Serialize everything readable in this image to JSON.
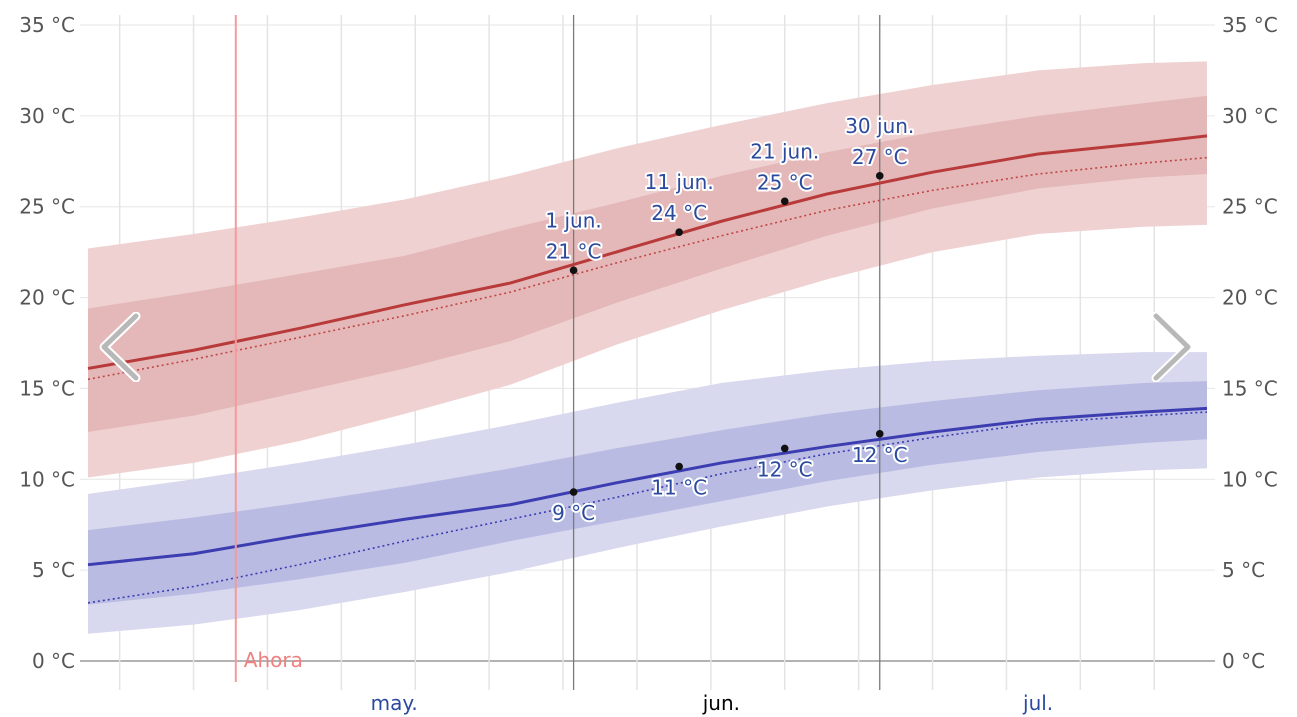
{
  "chart_data": {
    "type": "area",
    "title": "",
    "xlabel": "",
    "ylabel": "",
    "y_unit": "°C",
    "ylim": [
      0,
      35
    ],
    "y_ticks": [
      0,
      5,
      10,
      15,
      20,
      25,
      30,
      35
    ],
    "y_tick_labels": [
      "0 °C",
      "5 °C",
      "10 °C",
      "15 °C",
      "20 °C",
      "25 °C",
      "30 °C",
      "35 °C"
    ],
    "x_range": [
      "2024-04-16",
      "2024-07-31"
    ],
    "months": [
      {
        "label": "may.",
        "date": "2024-05-15",
        "color": "#2b4a9e"
      },
      {
        "label": "jun.",
        "date": "2024-06-15",
        "color": "#000000"
      },
      {
        "label": "jul.",
        "date": "2024-07-15",
        "color": "#2b4a9e"
      }
    ],
    "grid": true,
    "now": {
      "date": "2024-04-30",
      "label": "Ahora"
    },
    "x": [
      "2024-04-16",
      "2024-04-26",
      "2024-05-06",
      "2024-05-16",
      "2024-05-26",
      "2024-06-05",
      "2024-06-15",
      "2024-06-25",
      "2024-07-05",
      "2024-07-15",
      "2024-07-25",
      "2024-07-31"
    ],
    "series": [
      {
        "key": "max_outer",
        "color": "#efd1d1",
        "low": [
          10.1,
          10.9,
          12.1,
          13.6,
          15.2,
          17.4,
          19.3,
          21.0,
          22.5,
          23.5,
          23.9,
          24.0
        ],
        "high": [
          22.7,
          23.5,
          24.4,
          25.4,
          26.7,
          28.2,
          29.5,
          30.7,
          31.7,
          32.5,
          32.9,
          33.0
        ]
      },
      {
        "key": "max_inner",
        "color": "#e4b8b8",
        "low": [
          12.6,
          13.5,
          14.8,
          16.1,
          17.6,
          19.7,
          21.6,
          23.4,
          24.9,
          26.0,
          26.6,
          26.8
        ],
        "high": [
          19.4,
          20.3,
          21.3,
          22.3,
          23.8,
          25.2,
          26.7,
          28.0,
          29.1,
          30.0,
          30.7,
          31.1
        ]
      },
      {
        "key": "min_outer",
        "color": "#d8d8ee",
        "low": [
          1.5,
          2.0,
          2.8,
          3.8,
          4.9,
          6.2,
          7.4,
          8.5,
          9.4,
          10.1,
          10.5,
          10.6
        ],
        "high": [
          9.2,
          10.0,
          10.9,
          11.9,
          13.0,
          14.2,
          15.3,
          16.0,
          16.5,
          16.8,
          17.0,
          17.0
        ]
      },
      {
        "key": "min_inner",
        "color": "#babbe3",
        "low": [
          3.1,
          3.7,
          4.5,
          5.4,
          6.6,
          7.7,
          8.8,
          9.9,
          10.8,
          11.5,
          12.0,
          12.2
        ],
        "high": [
          7.2,
          7.9,
          8.7,
          9.6,
          10.6,
          11.7,
          12.7,
          13.6,
          14.3,
          14.9,
          15.3,
          15.4
        ]
      }
    ],
    "lines": [
      {
        "key": "max_avg",
        "color": "#b83a3a",
        "dashed": false,
        "values": [
          16.1,
          17.1,
          18.3,
          19.6,
          20.8,
          22.5,
          24.2,
          25.7,
          26.9,
          27.9,
          28.5,
          28.9
        ]
      },
      {
        "key": "max_ref",
        "color": "#c04545",
        "dashed": true,
        "values": [
          15.5,
          16.6,
          17.8,
          19.0,
          20.3,
          21.9,
          23.4,
          24.8,
          25.9,
          26.8,
          27.4,
          27.7
        ]
      },
      {
        "key": "min_avg",
        "color": "#3b3db0",
        "dashed": false,
        "values": [
          5.3,
          5.9,
          6.9,
          7.8,
          8.6,
          9.8,
          10.9,
          11.8,
          12.6,
          13.3,
          13.7,
          13.9
        ]
      },
      {
        "key": "min_ref",
        "color": "#3b3db0",
        "dashed": true,
        "values": [
          3.2,
          4.1,
          5.3,
          6.6,
          7.8,
          9.0,
          10.3,
          11.4,
          12.3,
          13.1,
          13.5,
          13.7
        ]
      }
    ],
    "markers": [
      {
        "date": "2024-06-01",
        "value": 21.5,
        "labels": [
          "1 jun.",
          "21 °C"
        ],
        "pos": "above"
      },
      {
        "date": "2024-06-11",
        "value": 23.6,
        "labels": [
          "11 jun.",
          "24 °C"
        ],
        "pos": "above"
      },
      {
        "date": "2024-06-21",
        "value": 25.3,
        "labels": [
          "21 jun.",
          "25 °C"
        ],
        "pos": "above"
      },
      {
        "date": "2024-06-30",
        "value": 26.7,
        "labels": [
          "30 jun.",
          "27 °C"
        ],
        "pos": "above"
      },
      {
        "date": "2024-06-01",
        "value": 9.3,
        "labels": [
          "9 °C"
        ],
        "pos": "below"
      },
      {
        "date": "2024-06-11",
        "value": 10.7,
        "labels": [
          "11 °C"
        ],
        "pos": "below"
      },
      {
        "date": "2024-06-21",
        "value": 11.7,
        "labels": [
          "12 °C"
        ],
        "pos": "below"
      },
      {
        "date": "2024-06-30",
        "value": 12.5,
        "labels": [
          "12 °C"
        ],
        "pos": "below"
      }
    ],
    "vertical_guides": [
      "2024-06-01",
      "2024-06-30"
    ]
  },
  "navigation": {
    "prev_icon": "chevron-left-icon",
    "next_icon": "chevron-right-icon"
  }
}
